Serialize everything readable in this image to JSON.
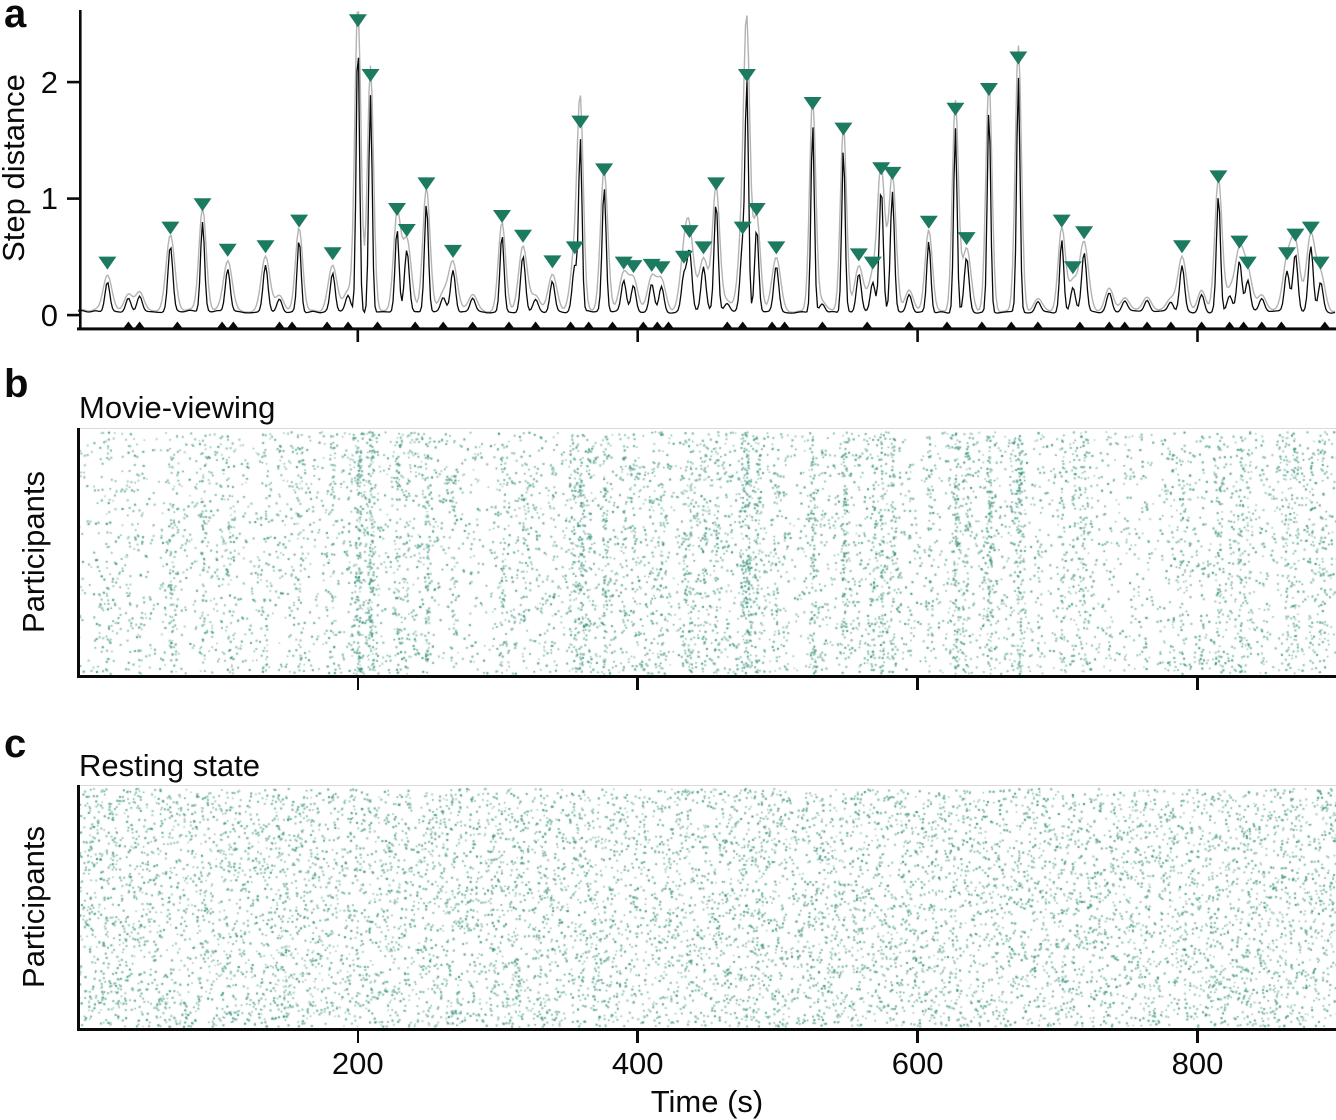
{
  "figure": {
    "panel_a": {
      "label": "a",
      "ylabel": "Step distance",
      "yticks": [
        "0",
        "1",
        "2"
      ]
    },
    "panel_b": {
      "label": "b",
      "title": "Movie-viewing",
      "ylabel": "Participants"
    },
    "panel_c": {
      "label": "c",
      "title": "Resting state",
      "ylabel": "Participants"
    },
    "x_axis": {
      "label": "Time (s)",
      "ticks": [
        "200",
        "400",
        "600",
        "800"
      ]
    }
  },
  "colors": {
    "axis": "#0a0a0a",
    "trace_black": "#0a0a0a",
    "trace_gray": "#b3b3b3",
    "peak_marker_green": "#1b7a60",
    "event_marker_black": "#0a0a0a",
    "raster_dot_teal": "#4e9c8a"
  },
  "chart_data": [
    {
      "panel": "a",
      "type": "line",
      "ylabel": "Step distance",
      "xlabel": "Time (s)",
      "xlim_s": [
        0,
        900
      ],
      "ylim": [
        0,
        2.62
      ],
      "yticks": [
        0,
        1,
        2
      ],
      "xticks_s": [
        200,
        400,
        600,
        800
      ],
      "series": [
        {
          "name": "group step distance (black trace)",
          "color": "#0a0a0a"
        },
        {
          "name": "secondary trace (gray halo)",
          "color": "#b3b3b3"
        }
      ],
      "peak_markers": {
        "marker": "downward-triangle",
        "color": "#1b7a60",
        "note": "marker plotted ~0.19 units above detected peak",
        "points_t_v": [
          [
            21,
            0.45
          ],
          [
            66,
            0.75
          ],
          [
            89,
            0.95
          ],
          [
            107,
            0.56
          ],
          [
            134,
            0.59
          ],
          [
            158,
            0.81
          ],
          [
            182,
            0.53
          ],
          [
            200,
            2.53
          ],
          [
            209,
            2.06
          ],
          [
            228,
            0.91
          ],
          [
            235,
            0.73
          ],
          [
            249,
            1.13
          ],
          [
            268,
            0.55
          ],
          [
            303,
            0.85
          ],
          [
            318,
            0.68
          ],
          [
            339,
            0.46
          ],
          [
            355,
            0.58
          ],
          [
            359,
            1.66
          ],
          [
            376,
            1.25
          ],
          [
            390,
            0.45
          ],
          [
            397,
            0.42
          ],
          [
            410,
            0.43
          ],
          [
            417,
            0.41
          ],
          [
            433,
            0.5
          ],
          [
            437,
            0.72
          ],
          [
            447,
            0.58
          ],
          [
            456,
            1.13
          ],
          [
            475,
            0.75
          ],
          [
            478,
            2.06
          ],
          [
            485,
            0.91
          ],
          [
            499,
            0.58
          ],
          [
            525,
            1.82
          ],
          [
            547,
            1.6
          ],
          [
            558,
            0.52
          ],
          [
            568,
            0.45
          ],
          [
            574,
            1.26
          ],
          [
            582,
            1.22
          ],
          [
            608,
            0.8
          ],
          [
            627,
            1.77
          ],
          [
            635,
            0.66
          ],
          [
            651,
            1.94
          ],
          [
            672,
            2.21
          ],
          [
            703,
            0.81
          ],
          [
            711,
            0.41
          ],
          [
            719,
            0.71
          ],
          [
            789,
            0.59
          ],
          [
            815,
            1.19
          ],
          [
            830,
            0.63
          ],
          [
            836,
            0.45
          ],
          [
            864,
            0.53
          ],
          [
            870,
            0.69
          ],
          [
            881,
            0.75
          ],
          [
            888,
            0.45
          ]
        ]
      },
      "step_events": {
        "marker": "upward-triangle",
        "color": "#0a0a0a",
        "times_s": [
          36,
          44,
          71,
          103,
          111,
          144,
          153,
          178,
          193,
          214,
          241,
          261,
          282,
          308,
          327,
          352,
          365,
          382,
          404,
          414,
          422,
          464,
          475,
          496,
          505,
          532,
          564,
          594,
          621,
          646,
          667,
          686,
          716,
          737,
          748,
          764,
          781,
          803,
          823,
          833,
          846,
          860,
          891
        ]
      }
    },
    {
      "panel": "b",
      "type": "scatter",
      "subtype": "event-raster",
      "title": "Movie-viewing",
      "ylabel": "Participants",
      "xlim_s": [
        0,
        900
      ],
      "pattern": "dots cluster in vertical bands aligned with group step times from panel a",
      "n_dots": 8600,
      "band_fraction": 0.62,
      "seed": 11
    },
    {
      "panel": "c",
      "type": "scatter",
      "subtype": "event-raster",
      "title": "Resting state",
      "ylabel": "Participants",
      "xlim_s": [
        0,
        900
      ],
      "pattern": "uniform random scatter, no group-level banding",
      "n_dots": 9800,
      "band_fraction": 0,
      "seed": 23
    }
  ]
}
